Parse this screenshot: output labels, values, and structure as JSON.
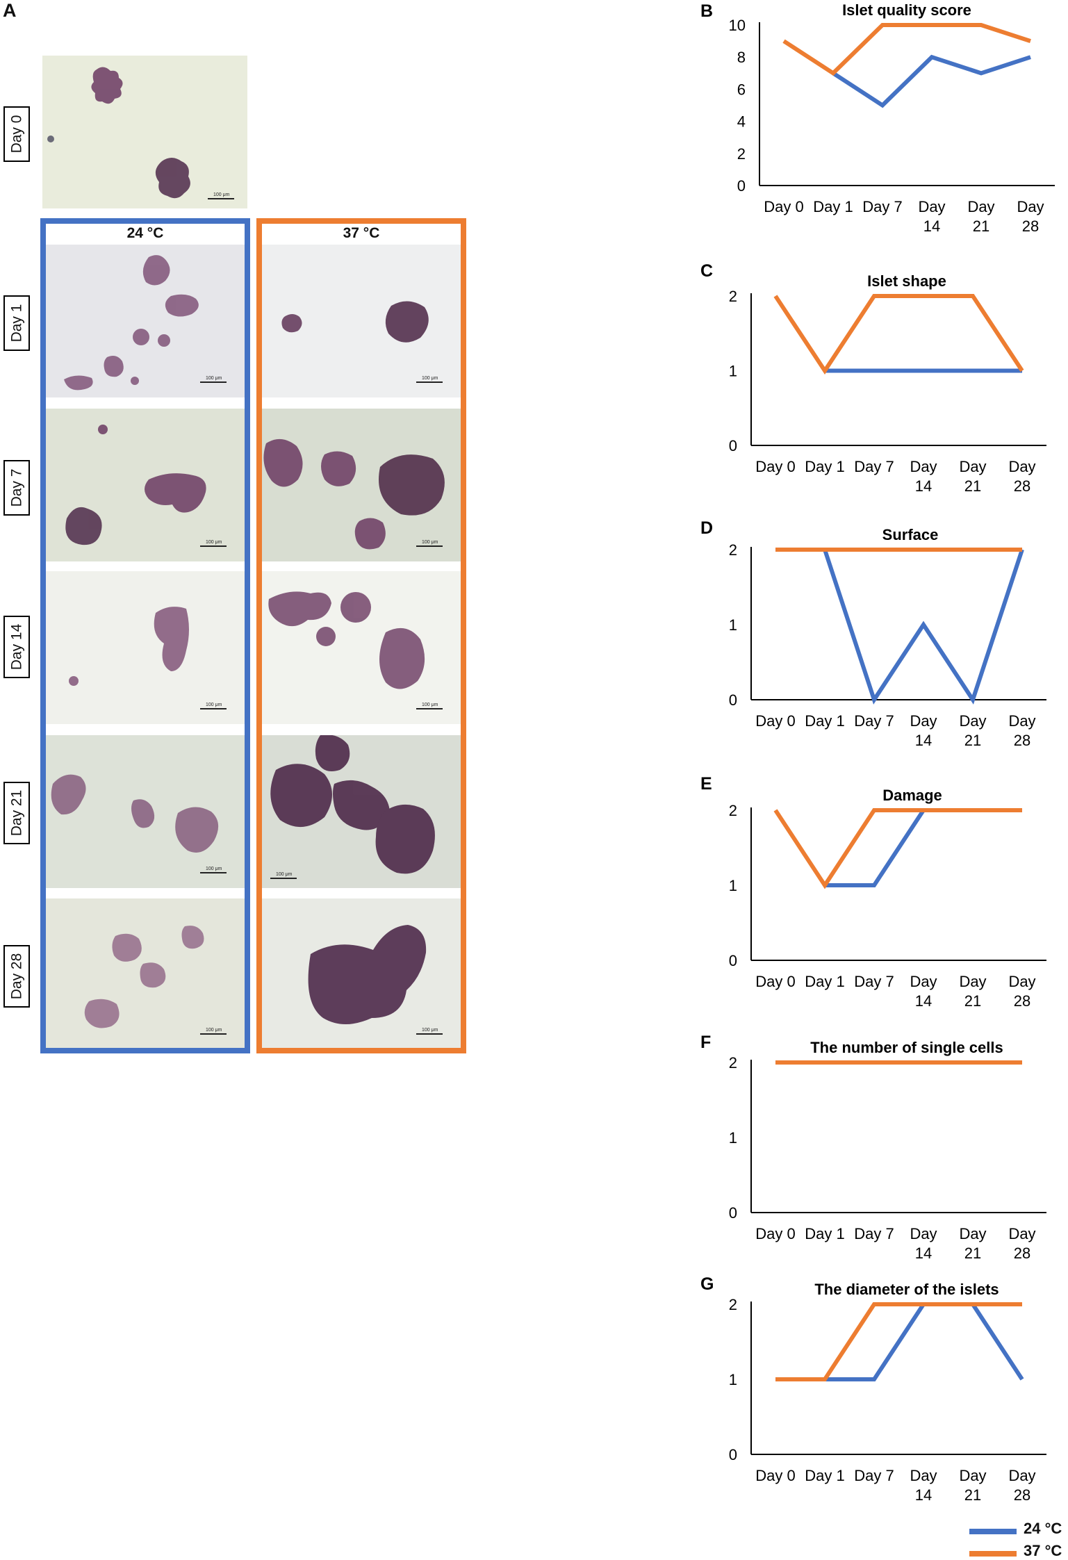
{
  "panel_a": {
    "letter": "A",
    "temp_cold": "24 °C",
    "temp_warm": "37 °C",
    "day_labels": [
      "Day 0",
      "Day 1",
      "Day 7",
      "Day 14",
      "Day 21",
      "Day 28"
    ],
    "scale_label": "100 μm"
  },
  "colors": {
    "cold": "#4472C4",
    "warm": "#ED7D31",
    "stain": "#6b3a62"
  },
  "legend": {
    "cold_label": "24 °C",
    "warm_label": "37 °C"
  },
  "chart_data": [
    {
      "letter": "B",
      "type": "line",
      "title": "Islet quality score",
      "categories": [
        "Day 0",
        "Day 1",
        "Day 7",
        "Day 14",
        "Day 21",
        "Day 28"
      ],
      "ylim": [
        0,
        10
      ],
      "yticks": [
        0,
        2,
        4,
        6,
        8,
        10
      ],
      "series": [
        {
          "name": "24 °C",
          "values": [
            null,
            7,
            5,
            8,
            7,
            8
          ]
        },
        {
          "name": "37 °C",
          "values": [
            9,
            7,
            10,
            10,
            10,
            9
          ]
        }
      ]
    },
    {
      "letter": "C",
      "type": "line",
      "title": "Islet  shape",
      "categories": [
        "Day 0",
        "Day 1",
        "Day 7",
        "Day 14",
        "Day 21",
        "Day 28"
      ],
      "ylim": [
        0,
        2
      ],
      "yticks": [
        0,
        1,
        2
      ],
      "series": [
        {
          "name": "24 °C",
          "values": [
            null,
            1,
            1,
            1,
            1,
            1
          ]
        },
        {
          "name": "37 °C",
          "values": [
            2,
            1,
            2,
            2,
            2,
            1
          ]
        }
      ]
    },
    {
      "letter": "D",
      "type": "line",
      "title": "Surface",
      "categories": [
        "Day 0",
        "Day 1",
        "Day 7",
        "Day 14",
        "Day 21",
        "Day 28"
      ],
      "ylim": [
        0,
        2
      ],
      "yticks": [
        0,
        1,
        2
      ],
      "series": [
        {
          "name": "24 °C",
          "values": [
            null,
            2,
            0,
            1,
            0,
            2
          ]
        },
        {
          "name": "37 °C",
          "values": [
            2,
            2,
            2,
            2,
            2,
            2
          ]
        }
      ]
    },
    {
      "letter": "E",
      "type": "line",
      "title": "Damage",
      "categories": [
        "Day 0",
        "Day 1",
        "Day 7",
        "Day 14",
        "Day 21",
        "Day 28"
      ],
      "ylim": [
        0,
        2
      ],
      "yticks": [
        0,
        1,
        2
      ],
      "series": [
        {
          "name": "24 °C",
          "values": [
            null,
            1,
            1,
            2,
            2,
            2
          ]
        },
        {
          "name": "37 °C",
          "values": [
            2,
            1,
            2,
            2,
            2,
            2
          ]
        }
      ]
    },
    {
      "letter": "F",
      "type": "line",
      "title": "The number of single cells",
      "categories": [
        "Day 0",
        "Day 1",
        "Day 7",
        "Day 14",
        "Day 21",
        "Day 28"
      ],
      "ylim": [
        0,
        2
      ],
      "yticks": [
        0,
        1,
        2
      ],
      "series": [
        {
          "name": "24 °C",
          "values": [
            null,
            2,
            2,
            2,
            2,
            2
          ]
        },
        {
          "name": "37 °C",
          "values": [
            2,
            2,
            2,
            2,
            2,
            2
          ]
        }
      ]
    },
    {
      "letter": "G",
      "type": "line",
      "title": "The diameter of the islets",
      "categories": [
        "Day 0",
        "Day 1",
        "Day 7",
        "Day 14",
        "Day 21",
        "Day 28"
      ],
      "ylim": [
        0,
        2
      ],
      "yticks": [
        0,
        1,
        2
      ],
      "series": [
        {
          "name": "24 °C",
          "values": [
            null,
            1,
            1,
            2,
            2,
            1
          ]
        },
        {
          "name": "37 °C",
          "values": [
            1,
            1,
            2,
            2,
            2,
            2
          ]
        }
      ]
    }
  ]
}
